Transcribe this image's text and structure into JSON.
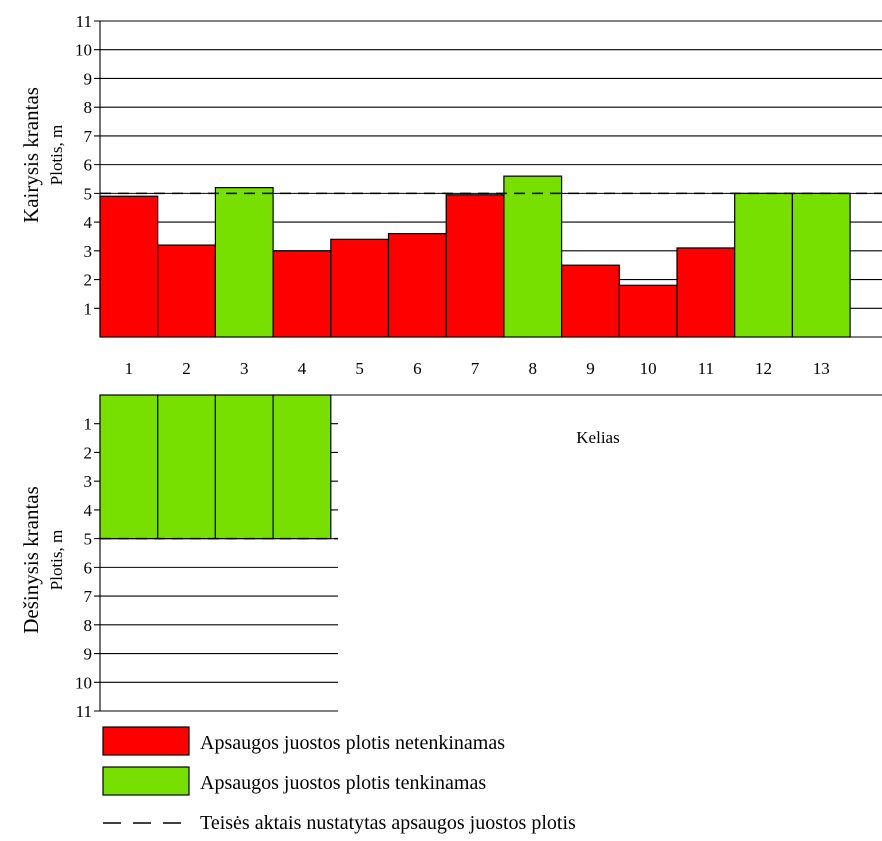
{
  "colors": {
    "fail": "#ff0000",
    "ok": "#77e000",
    "outline": "#000000"
  },
  "left_bank": {
    "axis_title": "Kairysis krantas",
    "unit_label": "Plotis, m",
    "y_ticks": [
      "1",
      "2",
      "3",
      "4",
      "5",
      "6",
      "7",
      "8",
      "9",
      "10",
      "11"
    ],
    "x_ticks": [
      "1",
      "2",
      "3",
      "4",
      "5",
      "6",
      "7",
      "8",
      "9",
      "10",
      "11",
      "12",
      "13"
    ]
  },
  "right_bank": {
    "axis_title": "Dešinysis krantas",
    "unit_label": "Plotis, m",
    "y_ticks": [
      "1",
      "2",
      "3",
      "4",
      "5",
      "6",
      "7",
      "8",
      "9",
      "10",
      "11"
    ]
  },
  "road_label": "Kelias",
  "legend": {
    "fail": "Apsaugos juostos plotis netenkinamas",
    "ok": "Apsaugos juostos plotis tenkinamas",
    "line": "Teisės aktais nustatytas apsaugos juostos plotis"
  },
  "chart_data": [
    {
      "type": "bar",
      "categories": [
        "1",
        "2",
        "3",
        "4",
        "5",
        "6",
        "7",
        "8",
        "9",
        "10",
        "11",
        "12",
        "13"
      ],
      "series": [
        {
          "name": "Kairysis krantas",
          "values": [
            4.9,
            3.2,
            5.2,
            3.0,
            3.4,
            3.6,
            4.95,
            5.6,
            2.5,
            1.8,
            3.1,
            5.0,
            5.0
          ]
        }
      ],
      "status": [
        "fail",
        "fail",
        "ok",
        "fail",
        "fail",
        "fail",
        "fail",
        "ok",
        "fail",
        "fail",
        "fail",
        "ok",
        "ok"
      ],
      "ylabel": "Plotis, m",
      "ylim": [
        0,
        11
      ],
      "reference_line": 5,
      "grid": true
    },
    {
      "type": "bar",
      "categories": [
        "1",
        "2",
        "3",
        "4"
      ],
      "series": [
        {
          "name": "Dešinysis krantas",
          "values": [
            5,
            5,
            5,
            5
          ]
        }
      ],
      "status": [
        "ok",
        "ok",
        "ok",
        "ok"
      ],
      "ylabel": "Plotis, m",
      "ylim": [
        0,
        11
      ],
      "inverted_axis": true,
      "reference_line": 5,
      "grid": true
    }
  ]
}
